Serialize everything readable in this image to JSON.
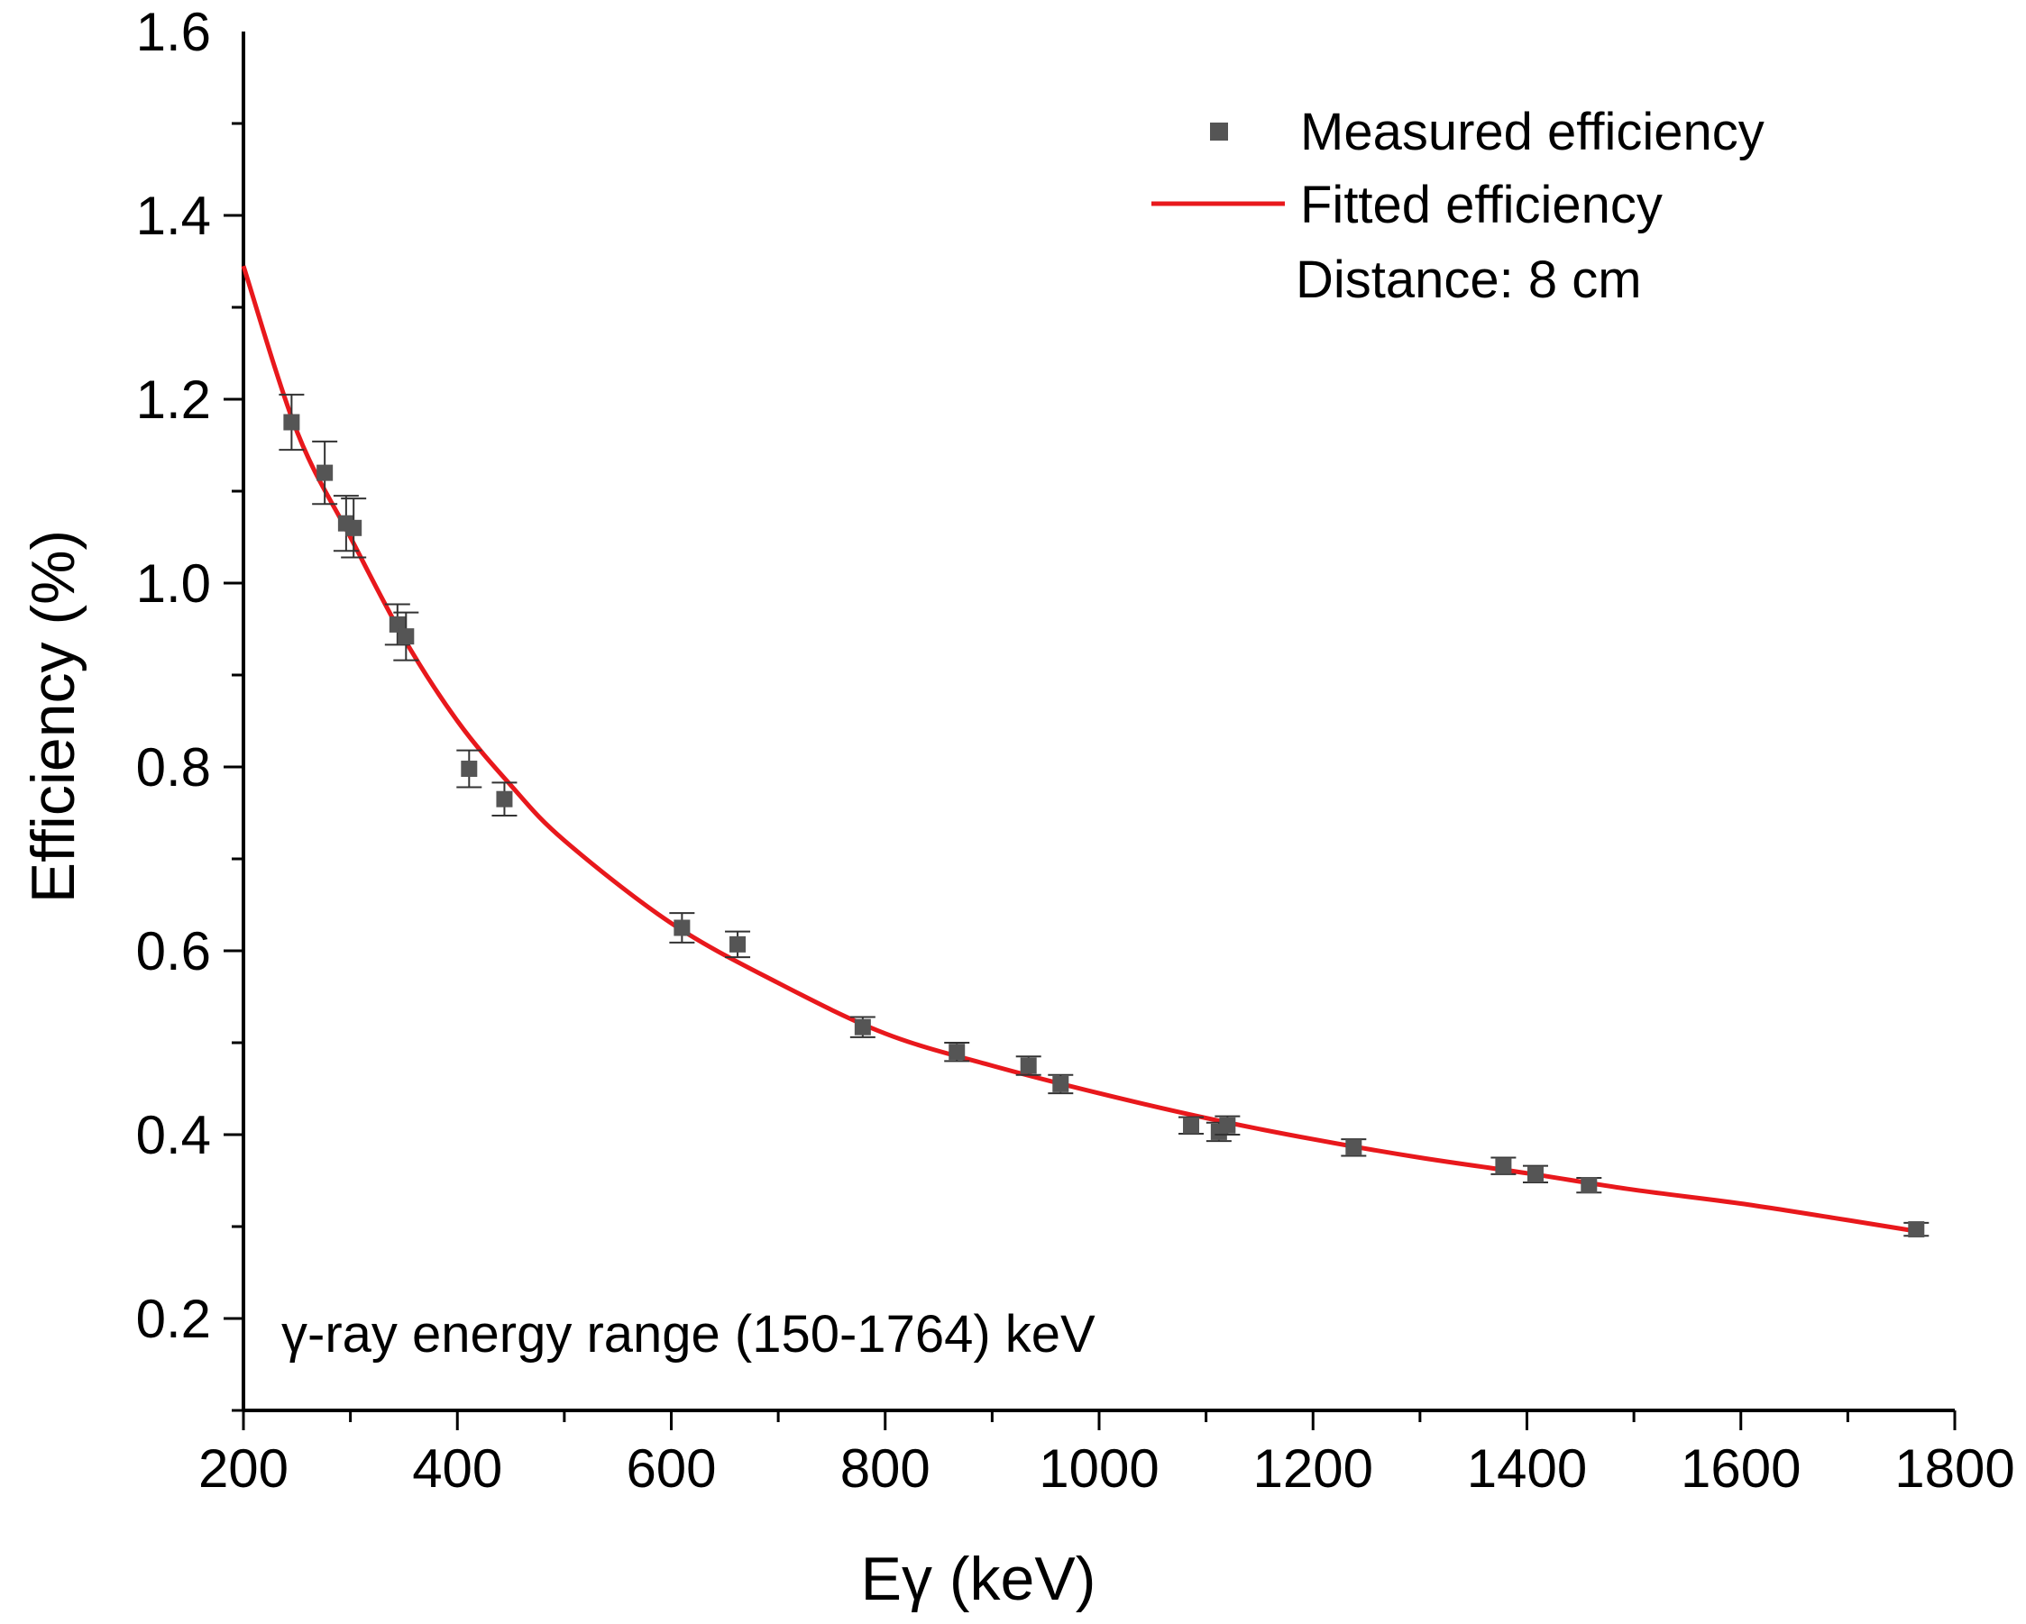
{
  "chart_data": {
    "type": "scatter",
    "xlabel": "Eγ (keV)",
    "ylabel": "Efficiency (%)",
    "xlim": [
      200,
      1800
    ],
    "ylim": [
      0.1,
      1.6
    ],
    "x_ticks": [
      "200",
      "400",
      "600",
      "800",
      "1000",
      "1200",
      "1400",
      "1600",
      "1800"
    ],
    "y_ticks": [
      "0.2",
      "0.4",
      "0.6",
      "0.8",
      "1.0",
      "1.2",
      "1.4",
      "1.6"
    ],
    "grid": false,
    "legend": "top-right",
    "series": [
      {
        "name": "Measured efficiency",
        "type": "scatter",
        "color": "#555555",
        "points": [
          {
            "x": 245,
            "y": 1.175,
            "err": 0.03
          },
          {
            "x": 276,
            "y": 1.12,
            "err": 0.034
          },
          {
            "x": 296,
            "y": 1.065,
            "err": 0.03
          },
          {
            "x": 303,
            "y": 1.06,
            "err": 0.032
          },
          {
            "x": 344,
            "y": 0.955,
            "err": 0.022
          },
          {
            "x": 352,
            "y": 0.942,
            "err": 0.026
          },
          {
            "x": 411,
            "y": 0.798,
            "err": 0.02
          },
          {
            "x": 444,
            "y": 0.765,
            "err": 0.018
          },
          {
            "x": 610,
            "y": 0.625,
            "err": 0.016
          },
          {
            "x": 662,
            "y": 0.607,
            "err": 0.014
          },
          {
            "x": 779,
            "y": 0.517,
            "err": 0.011
          },
          {
            "x": 867,
            "y": 0.49,
            "err": 0.01
          },
          {
            "x": 934,
            "y": 0.475,
            "err": 0.01
          },
          {
            "x": 964,
            "y": 0.455,
            "err": 0.01
          },
          {
            "x": 1086,
            "y": 0.41,
            "err": 0.009
          },
          {
            "x": 1112,
            "y": 0.403,
            "err": 0.01
          },
          {
            "x": 1120,
            "y": 0.41,
            "err": 0.01
          },
          {
            "x": 1238,
            "y": 0.386,
            "err": 0.009
          },
          {
            "x": 1378,
            "y": 0.366,
            "err": 0.009
          },
          {
            "x": 1408,
            "y": 0.357,
            "err": 0.009
          },
          {
            "x": 1458,
            "y": 0.345,
            "err": 0.008
          },
          {
            "x": 1764,
            "y": 0.297,
            "err": 0.007
          }
        ]
      },
      {
        "name": "Fitted efficiency",
        "type": "line",
        "color": "#e8181c",
        "points": [
          {
            "x": 200,
            "y": 1.345
          },
          {
            "x": 250,
            "y": 1.165
          },
          {
            "x": 300,
            "y": 1.05
          },
          {
            "x": 350,
            "y": 0.94
          },
          {
            "x": 400,
            "y": 0.85
          },
          {
            "x": 450,
            "y": 0.78
          },
          {
            "x": 500,
            "y": 0.72
          },
          {
            "x": 600,
            "y": 0.63
          },
          {
            "x": 700,
            "y": 0.565
          },
          {
            "x": 800,
            "y": 0.51
          },
          {
            "x": 900,
            "y": 0.475
          },
          {
            "x": 1000,
            "y": 0.445
          },
          {
            "x": 1100,
            "y": 0.418
          },
          {
            "x": 1200,
            "y": 0.395
          },
          {
            "x": 1300,
            "y": 0.375
          },
          {
            "x": 1400,
            "y": 0.358
          },
          {
            "x": 1500,
            "y": 0.34
          },
          {
            "x": 1600,
            "y": 0.325
          },
          {
            "x": 1700,
            "y": 0.307
          },
          {
            "x": 1764,
            "y": 0.295
          }
        ]
      }
    ],
    "annotations": {
      "distance": "Distance: 8 cm",
      "energy_range": "γ-ray energy range (150-1764) keV"
    }
  }
}
